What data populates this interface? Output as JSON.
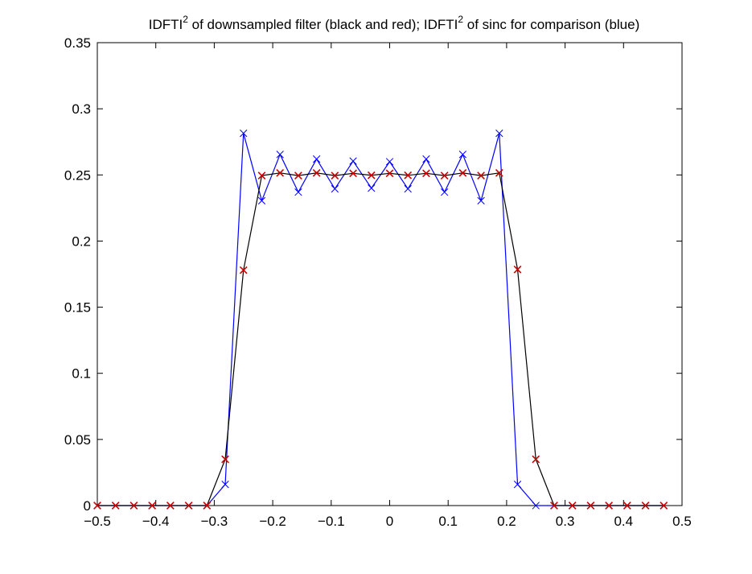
{
  "chart_data": {
    "type": "line",
    "title": {
      "part1": "IDFTI",
      "sup1": "2",
      "part2": " of downsampled filter (black and red); IDFTI",
      "sup2": "2",
      "part3": " of sinc for comparison (blue)"
    },
    "xlabel": "",
    "ylabel": "",
    "xlim": [
      -0.5,
      0.5
    ],
    "ylim": [
      0,
      0.35
    ],
    "grid": false,
    "x_ticks": [
      -0.5,
      -0.4,
      -0.3,
      -0.2,
      -0.1,
      0,
      0.1,
      0.2,
      0.3,
      0.4,
      0.5
    ],
    "x_tick_labels": [
      "−0.5",
      "−0.4",
      "−0.3",
      "−0.2",
      "−0.1",
      "0",
      "0.1",
      "0.2",
      "0.3",
      "0.4",
      "0.5"
    ],
    "y_ticks": [
      0,
      0.05,
      0.1,
      0.15,
      0.2,
      0.25,
      0.3,
      0.35
    ],
    "y_tick_labels": [
      "0",
      "0.05",
      "0.1",
      "0.15",
      "0.2",
      "0.25",
      "0.3",
      "0.35"
    ],
    "series": [
      {
        "name": "sinc (blue)",
        "color": "#0000ff",
        "marker": "x",
        "marker_color": "#0000ff",
        "x": [
          -0.5,
          -0.46875,
          -0.4375,
          -0.40625,
          -0.375,
          -0.34375,
          -0.3125,
          -0.28125,
          -0.25,
          -0.21875,
          -0.1875,
          -0.15625,
          -0.125,
          -0.09375,
          -0.0625,
          -0.03125,
          0,
          0.03125,
          0.0625,
          0.09375,
          0.125,
          0.15625,
          0.1875,
          0.21875,
          0.25,
          0.28125,
          0.3125,
          0.34375,
          0.375,
          0.40625,
          0.4375,
          0.46875
        ],
        "y": [
          0,
          0,
          0,
          0,
          0,
          0,
          0,
          0.016,
          0.2815,
          0.2305,
          0.2655,
          0.237,
          0.262,
          0.2395,
          0.2605,
          0.24,
          0.26,
          0.2395,
          0.262,
          0.237,
          0.2655,
          0.2305,
          0.2815,
          0.016,
          0,
          0,
          0,
          0,
          0,
          0,
          0,
          0
        ]
      },
      {
        "name": "downsampled filter (black line)",
        "color": "#000000",
        "marker": "x",
        "marker_color": "#cc0000",
        "x": [
          -0.5,
          -0.46875,
          -0.4375,
          -0.40625,
          -0.375,
          -0.34375,
          -0.3125,
          -0.28125,
          -0.25,
          -0.21875,
          -0.1875,
          -0.15625,
          -0.125,
          -0.09375,
          -0.0625,
          -0.03125,
          0,
          0.03125,
          0.0625,
          0.09375,
          0.125,
          0.15625,
          0.1875,
          0.21875,
          0.25,
          0.28125,
          0.3125,
          0.34375,
          0.375,
          0.40625,
          0.4375,
          0.46875
        ],
        "y": [
          0,
          0,
          0,
          0,
          0,
          0,
          0,
          0.035,
          0.178,
          0.2495,
          0.2515,
          0.2495,
          0.2515,
          0.2495,
          0.2512,
          0.2497,
          0.2512,
          0.2497,
          0.2512,
          0.2495,
          0.2515,
          0.2495,
          0.2515,
          0.1785,
          0.035,
          0,
          0,
          0,
          0,
          0,
          0,
          0
        ]
      }
    ]
  }
}
